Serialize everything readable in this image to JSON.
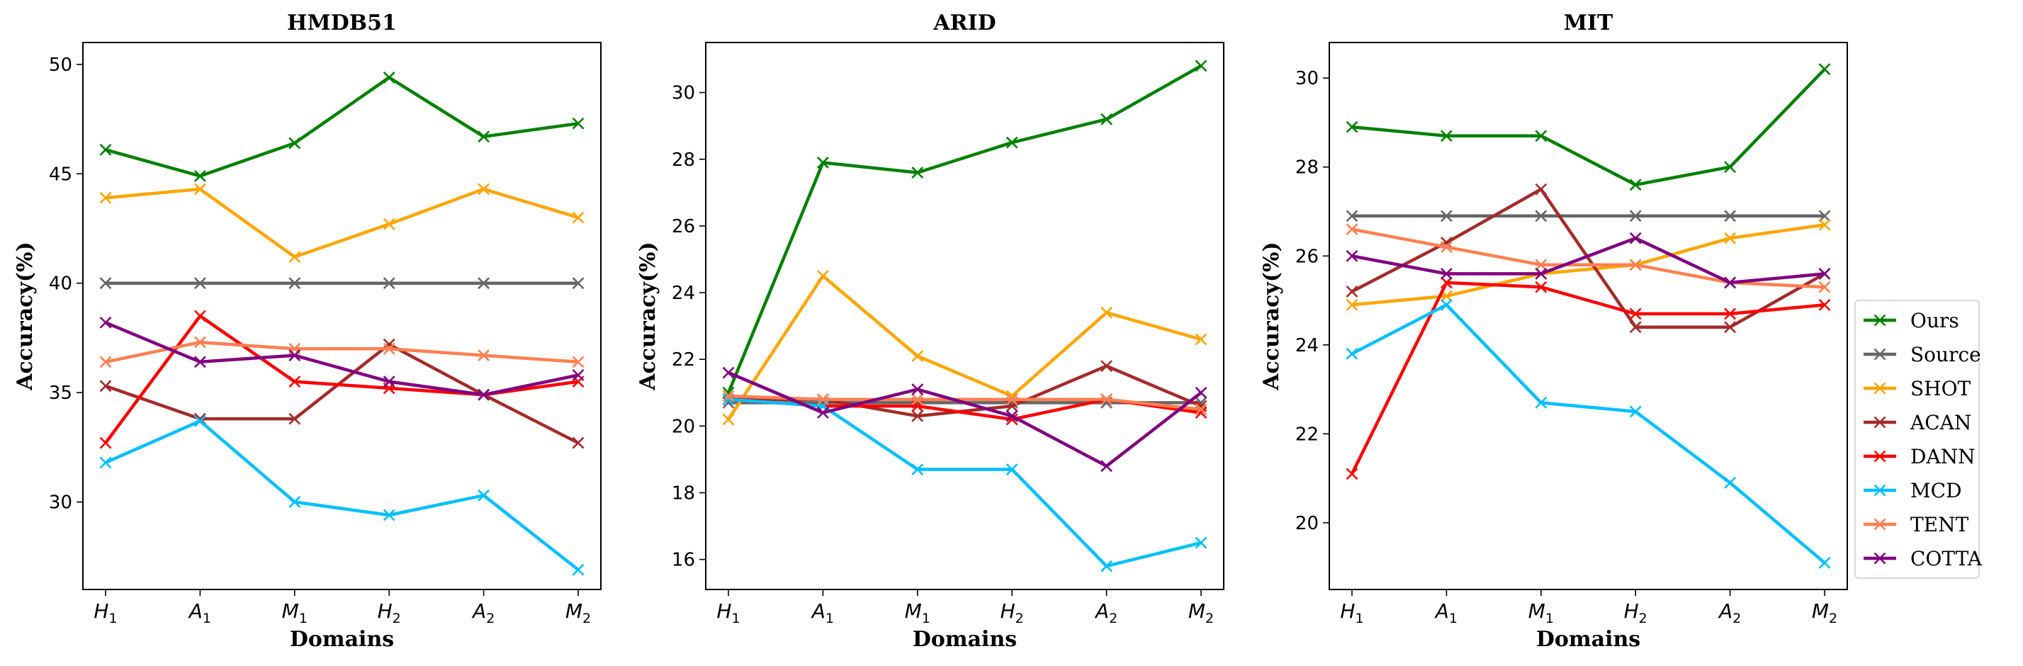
{
  "chart_data": [
    {
      "type": "line",
      "title": "HMDB51",
      "xlabel": "Domains",
      "ylabel": "Accuracy(%)",
      "ylim": [
        26,
        51
      ],
      "yticks": [
        30,
        35,
        40,
        45,
        50
      ],
      "categories": [
        {
          "base": "H",
          "sub": "1"
        },
        {
          "base": "A",
          "sub": "1"
        },
        {
          "base": "M",
          "sub": "1"
        },
        {
          "base": "H",
          "sub": "2"
        },
        {
          "base": "A",
          "sub": "2"
        },
        {
          "base": "M",
          "sub": "2"
        }
      ],
      "series": [
        {
          "name": "Ours",
          "values": [
            46.1,
            44.9,
            46.4,
            49.4,
            46.7,
            47.3
          ]
        },
        {
          "name": "Source",
          "values": [
            40.0,
            40.0,
            40.0,
            40.0,
            40.0,
            40.0
          ]
        },
        {
          "name": "SHOT",
          "values": [
            43.9,
            44.3,
            41.2,
            42.7,
            44.3,
            43.0
          ]
        },
        {
          "name": "ACAN",
          "values": [
            35.3,
            33.8,
            33.8,
            37.2,
            34.9,
            32.7
          ]
        },
        {
          "name": "DANN",
          "values": [
            32.7,
            38.5,
            35.5,
            35.2,
            34.9,
            35.5
          ]
        },
        {
          "name": "MCD",
          "values": [
            31.8,
            33.7,
            30.0,
            29.4,
            30.3,
            26.9
          ]
        },
        {
          "name": "TENT",
          "values": [
            36.4,
            37.3,
            37.0,
            37.0,
            36.7,
            36.4
          ]
        },
        {
          "name": "COTTA",
          "values": [
            38.2,
            36.4,
            36.7,
            35.5,
            34.9,
            35.8
          ]
        }
      ]
    },
    {
      "type": "line",
      "title": "ARID",
      "xlabel": "Domains",
      "ylabel": "Accuracy(%)",
      "ylim": [
        15.1,
        31.5
      ],
      "yticks": [
        16,
        18,
        20,
        22,
        24,
        26,
        28,
        30
      ],
      "categories": [
        {
          "base": "H",
          "sub": "1"
        },
        {
          "base": "A",
          "sub": "1"
        },
        {
          "base": "M",
          "sub": "1"
        },
        {
          "base": "H",
          "sub": "2"
        },
        {
          "base": "A",
          "sub": "2"
        },
        {
          "base": "M",
          "sub": "2"
        }
      ],
      "series": [
        {
          "name": "Ours",
          "values": [
            21.0,
            27.9,
            27.6,
            28.5,
            29.2,
            30.8
          ]
        },
        {
          "name": "Source",
          "values": [
            20.7,
            20.7,
            20.7,
            20.7,
            20.7,
            20.7
          ]
        },
        {
          "name": "SHOT",
          "values": [
            20.2,
            24.5,
            22.1,
            20.9,
            23.4,
            22.6
          ]
        },
        {
          "name": "ACAN",
          "values": [
            20.8,
            20.8,
            20.3,
            20.6,
            21.8,
            20.6
          ]
        },
        {
          "name": "DANN",
          "values": [
            20.8,
            20.6,
            20.6,
            20.2,
            20.8,
            20.4
          ]
        },
        {
          "name": "MCD",
          "values": [
            20.8,
            20.6,
            18.7,
            18.7,
            15.8,
            16.5
          ]
        },
        {
          "name": "TENT",
          "values": [
            20.9,
            20.8,
            20.8,
            20.8,
            20.8,
            20.5
          ]
        },
        {
          "name": "COTTA",
          "values": [
            21.6,
            20.4,
            21.1,
            20.3,
            18.8,
            21.0
          ]
        }
      ]
    },
    {
      "type": "line",
      "title": "MIT",
      "xlabel": "Domains",
      "ylabel": "Accuracy(%)",
      "ylim": [
        18.5,
        30.8
      ],
      "yticks": [
        20,
        22,
        24,
        26,
        28,
        30
      ],
      "categories": [
        {
          "base": "H",
          "sub": "1"
        },
        {
          "base": "A",
          "sub": "1"
        },
        {
          "base": "M",
          "sub": "1"
        },
        {
          "base": "H",
          "sub": "2"
        },
        {
          "base": "A",
          "sub": "2"
        },
        {
          "base": "M",
          "sub": "2"
        }
      ],
      "series": [
        {
          "name": "Ours",
          "values": [
            28.9,
            28.7,
            28.7,
            27.6,
            28.0,
            30.2
          ]
        },
        {
          "name": "Source",
          "values": [
            26.9,
            26.9,
            26.9,
            26.9,
            26.9,
            26.9
          ]
        },
        {
          "name": "SHOT",
          "values": [
            24.9,
            25.1,
            25.6,
            25.8,
            26.4,
            26.7
          ]
        },
        {
          "name": "ACAN",
          "values": [
            25.2,
            26.3,
            27.5,
            24.4,
            24.4,
            25.6
          ]
        },
        {
          "name": "DANN",
          "values": [
            21.1,
            25.4,
            25.3,
            24.7,
            24.7,
            24.9
          ]
        },
        {
          "name": "MCD",
          "values": [
            23.8,
            24.9,
            22.7,
            22.5,
            20.9,
            19.1
          ]
        },
        {
          "name": "TENT",
          "values": [
            26.6,
            26.2,
            25.8,
            25.8,
            25.4,
            25.3
          ]
        },
        {
          "name": "COTTA",
          "values": [
            26.0,
            25.6,
            25.6,
            26.4,
            25.4,
            25.6
          ]
        }
      ]
    }
  ],
  "legend": {
    "placement": "right",
    "items": [
      {
        "name": "Ours",
        "color": "#008000"
      },
      {
        "name": "Source",
        "color": "#666666"
      },
      {
        "name": "SHOT",
        "color": "#FFA500"
      },
      {
        "name": "ACAN",
        "color": "#A52A2A"
      },
      {
        "name": "DANN",
        "color": "#FF0000"
      },
      {
        "name": "MCD",
        "color": "#00BFFF"
      },
      {
        "name": "TENT",
        "color": "#FF7F50"
      },
      {
        "name": "COTTA",
        "color": "#800080"
      }
    ]
  }
}
